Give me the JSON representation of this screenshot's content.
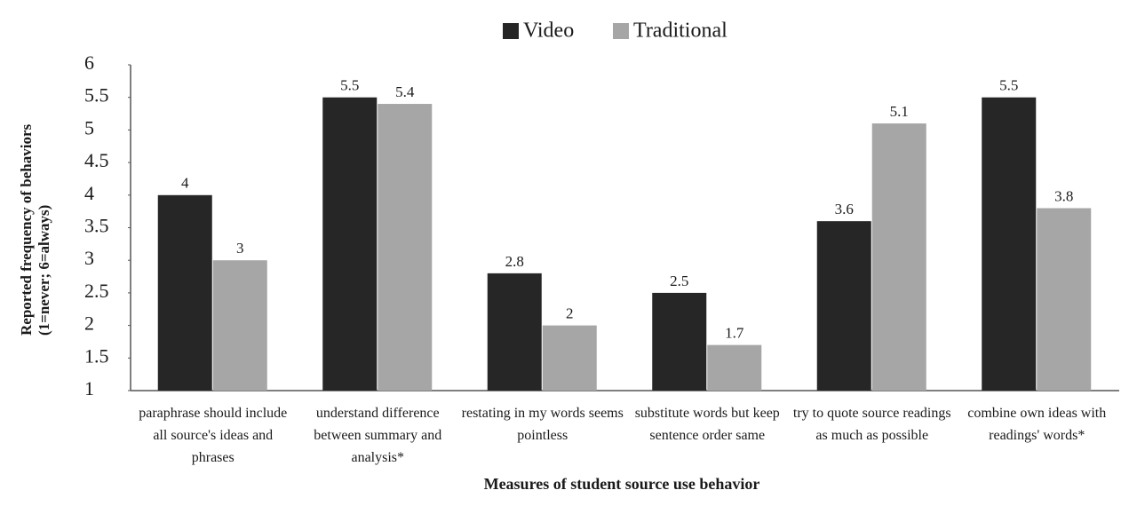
{
  "chart_data": {
    "type": "bar",
    "x_label": "Measures of student source use behavior",
    "y_label": "Reported frequency of behaviors (1=never; 6=always)",
    "categories": [
      "paraphrase should include all source's ideas and phrases",
      "understand difference between summary and analysis*",
      "restating in my words seems pointless",
      "substitute words but keep sentence order same",
      "try to quote source readings as much as possible",
      "combine own ideas with readings' words*"
    ],
    "series": [
      {
        "name": "Video",
        "color": "#262626",
        "values": [
          4,
          5.5,
          2.8,
          2.5,
          3.6,
          5.5
        ]
      },
      {
        "name": "Traditional",
        "color": "#a6a6a6",
        "values": [
          3,
          5.4,
          2,
          1.7,
          5.1,
          3.8
        ]
      }
    ],
    "ylim": [
      1,
      6
    ],
    "yticks": [
      1,
      1.5,
      2,
      2.5,
      3,
      3.5,
      4,
      4.5,
      5,
      5.5,
      6
    ],
    "grid": false,
    "legend": "top"
  }
}
